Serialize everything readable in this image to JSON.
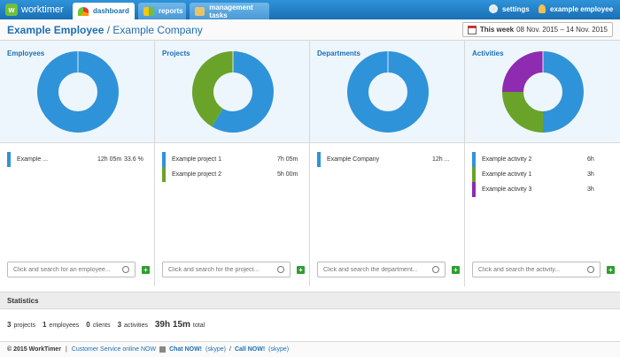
{
  "app": {
    "logo_letter": "w",
    "name": "worktimer"
  },
  "nav": {
    "tabs": [
      {
        "label": "dashboard",
        "active": true
      },
      {
        "label": "reports"
      },
      {
        "label": "management tasks"
      }
    ],
    "settings_label": "settings",
    "user_label": "example employee"
  },
  "header": {
    "title": "Example Employee",
    "subtitle": "/ Example Company",
    "week_label": "This week",
    "week_range": "08 Nov. 2015 – 14 Nov. 2015"
  },
  "panels": [
    {
      "title": "Employees",
      "rows": [
        {
          "name": "Example ...",
          "time": "12h 05m",
          "pct": "33.6 %",
          "color": "#2f93d9"
        }
      ],
      "search_placeholder": "Click and search for an employee...",
      "add_label": "+"
    },
    {
      "title": "Projects",
      "rows": [
        {
          "name": "Example project 1",
          "time": "7h 05m",
          "color": "#2f93d9"
        },
        {
          "name": "Example project 2",
          "time": "5h 00m",
          "color": "#6aa329"
        }
      ],
      "search_placeholder": "Click and search for the project...",
      "add_label": "+"
    },
    {
      "title": "Departments",
      "rows": [
        {
          "name": "Example Company",
          "time": "12h ...",
          "color": "#2f93d9"
        }
      ],
      "search_placeholder": "Click and search the department...",
      "add_label": "+"
    },
    {
      "title": "Activities",
      "rows": [
        {
          "name": "Example activity 2",
          "time": "6h",
          "color": "#2f93d9"
        },
        {
          "name": "Example activity 1",
          "time": "3h",
          "color": "#6aa329"
        },
        {
          "name": "Example activity 3",
          "time": "3h",
          "color": "#8e2bb0"
        }
      ],
      "search_placeholder": "Click and search the activity...",
      "add_label": "+"
    }
  ],
  "chart_data": [
    {
      "type": "pie",
      "panel": "Employees",
      "series": [
        {
          "name": "Example ...",
          "values": [
            12.08
          ]
        }
      ],
      "colors": [
        "#2f93d9"
      ]
    },
    {
      "type": "pie",
      "panel": "Projects",
      "categories": [
        "Example project 1",
        "Example project 2"
      ],
      "values": [
        7.08,
        5.0
      ],
      "colors": [
        "#2f93d9",
        "#6aa329"
      ]
    },
    {
      "type": "pie",
      "panel": "Departments",
      "categories": [
        "Example Company"
      ],
      "values": [
        12.08
      ],
      "colors": [
        "#2f93d9"
      ]
    },
    {
      "type": "pie",
      "panel": "Activities",
      "categories": [
        "Example activity 2",
        "Example activity 1",
        "Example activity 3"
      ],
      "values": [
        6,
        3,
        3
      ],
      "colors": [
        "#2f93d9",
        "#6aa329",
        "#8e2bb0"
      ]
    }
  ],
  "statistics": {
    "heading": "Statistics",
    "projects_count": "3",
    "projects_label": "projects",
    "employees_count": "1",
    "employees_label": "employees",
    "clients_count": "0",
    "clients_label": "clients",
    "activities_count": "3",
    "activities_label": "activities",
    "total_value": "39h 15m",
    "total_label": "total"
  },
  "footer": {
    "copyright": "© 2015 WorkTimer",
    "separator": "|",
    "service": "Customer Service online NOW",
    "chat1": "Chat NOW!",
    "skype1": "(skype)",
    "slash": "/",
    "chat2": "Call NOW!",
    "skype2": "(skype)"
  }
}
